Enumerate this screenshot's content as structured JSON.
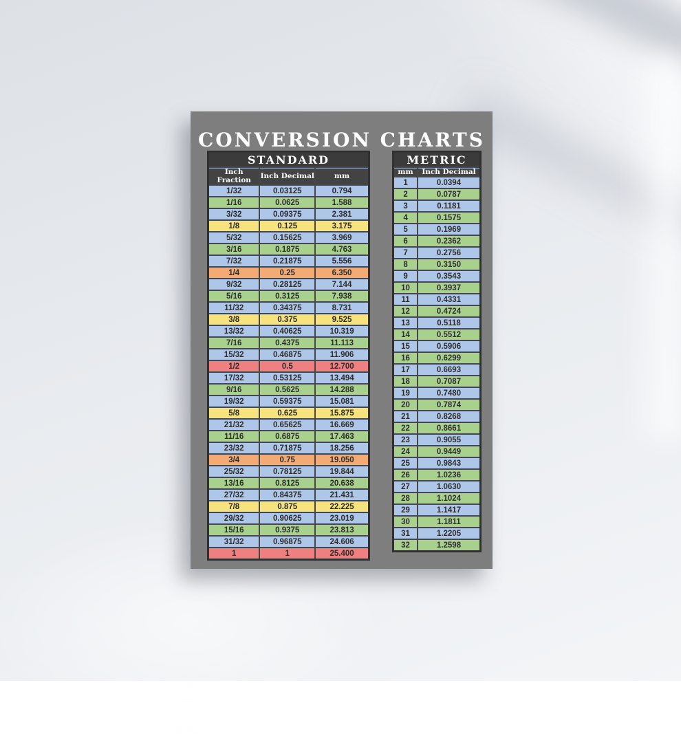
{
  "poster": {
    "title": "CONVERSION CHARTS"
  },
  "colors": {
    "poster_background": "#7e7e7e",
    "header_background": "#3b3b3b",
    "row_blue": "#aec6e8",
    "row_green": "#a9d18e",
    "row_yellow": "#f6e37d",
    "row_orange": "#f3ab73",
    "row_red": "#ef8081",
    "header_text": "#ffffff",
    "body_text": "#2d2d2d"
  },
  "chart_data": [
    {
      "type": "table",
      "title": "STANDARD",
      "columns": [
        "Inch Fraction",
        "Inch Decimal",
        "mm"
      ],
      "rows": [
        [
          "1/32",
          "0.03125",
          "0.794"
        ],
        [
          "1/16",
          "0.0625",
          "1.588"
        ],
        [
          "3/32",
          "0.09375",
          "2.381"
        ],
        [
          "1/8",
          "0.125",
          "3.175"
        ],
        [
          "5/32",
          "0.15625",
          "3.969"
        ],
        [
          "3/16",
          "0.1875",
          "4.763"
        ],
        [
          "7/32",
          "0.21875",
          "5.556"
        ],
        [
          "1/4",
          "0.25",
          "6.350"
        ],
        [
          "9/32",
          "0.28125",
          "7.144"
        ],
        [
          "5/16",
          "0.3125",
          "7.938"
        ],
        [
          "11/32",
          "0.34375",
          "8.731"
        ],
        [
          "3/8",
          "0.375",
          "9.525"
        ],
        [
          "13/32",
          "0.40625",
          "10.319"
        ],
        [
          "7/16",
          "0.4375",
          "11.113"
        ],
        [
          "15/32",
          "0.46875",
          "11.906"
        ],
        [
          "1/2",
          "0.5",
          "12.700"
        ],
        [
          "17/32",
          "0.53125",
          "13.494"
        ],
        [
          "9/16",
          "0.5625",
          "14.288"
        ],
        [
          "19/32",
          "0.59375",
          "15.081"
        ],
        [
          "5/8",
          "0.625",
          "15.875"
        ],
        [
          "21/32",
          "0.65625",
          "16.669"
        ],
        [
          "11/16",
          "0.6875",
          "17.463"
        ],
        [
          "23/32",
          "0.71875",
          "18.256"
        ],
        [
          "3/4",
          "0.75",
          "19.050"
        ],
        [
          "25/32",
          "0.78125",
          "19.844"
        ],
        [
          "13/16",
          "0.8125",
          "20.638"
        ],
        [
          "27/32",
          "0.84375",
          "21.431"
        ],
        [
          "7/8",
          "0.875",
          "22.225"
        ],
        [
          "29/32",
          "0.90625",
          "23.019"
        ],
        [
          "15/16",
          "0.9375",
          "23.813"
        ],
        [
          "31/32",
          "0.96875",
          "24.606"
        ],
        [
          "1",
          "1",
          "25.400"
        ]
      ],
      "row_colors": [
        "blue",
        "green",
        "blue",
        "yellow",
        "blue",
        "green",
        "blue",
        "orange",
        "blue",
        "green",
        "blue",
        "yellow",
        "blue",
        "green",
        "blue",
        "red",
        "blue",
        "green",
        "blue",
        "yellow",
        "blue",
        "green",
        "blue",
        "orange",
        "blue",
        "green",
        "blue",
        "yellow",
        "blue",
        "green",
        "blue",
        "red"
      ]
    },
    {
      "type": "table",
      "title": "METRIC",
      "columns": [
        "mm",
        "Inch Decimal"
      ],
      "rows": [
        [
          "1",
          "0.0394"
        ],
        [
          "2",
          "0.0787"
        ],
        [
          "3",
          "0.1181"
        ],
        [
          "4",
          "0.1575"
        ],
        [
          "5",
          "0.1969"
        ],
        [
          "6",
          "0.2362"
        ],
        [
          "7",
          "0.2756"
        ],
        [
          "8",
          "0.3150"
        ],
        [
          "9",
          "0.3543"
        ],
        [
          "10",
          "0.3937"
        ],
        [
          "11",
          "0.4331"
        ],
        [
          "12",
          "0.4724"
        ],
        [
          "13",
          "0.5118"
        ],
        [
          "14",
          "0.5512"
        ],
        [
          "15",
          "0.5906"
        ],
        [
          "16",
          "0.6299"
        ],
        [
          "17",
          "0.6693"
        ],
        [
          "18",
          "0.7087"
        ],
        [
          "19",
          "0.7480"
        ],
        [
          "20",
          "0.7874"
        ],
        [
          "21",
          "0.8268"
        ],
        [
          "22",
          "0.8661"
        ],
        [
          "23",
          "0.9055"
        ],
        [
          "24",
          "0.9449"
        ],
        [
          "25",
          "0.9843"
        ],
        [
          "26",
          "1.0236"
        ],
        [
          "27",
          "1.0630"
        ],
        [
          "28",
          "1.1024"
        ],
        [
          "29",
          "1.1417"
        ],
        [
          "30",
          "1.1811"
        ],
        [
          "31",
          "1.2205"
        ],
        [
          "32",
          "1.2598"
        ]
      ],
      "row_colors": [
        "blue",
        "green",
        "blue",
        "green",
        "blue",
        "green",
        "blue",
        "green",
        "blue",
        "green",
        "blue",
        "green",
        "blue",
        "green",
        "blue",
        "green",
        "blue",
        "green",
        "blue",
        "green",
        "blue",
        "green",
        "blue",
        "green",
        "blue",
        "green",
        "blue",
        "green",
        "blue",
        "green",
        "blue",
        "green"
      ]
    }
  ]
}
